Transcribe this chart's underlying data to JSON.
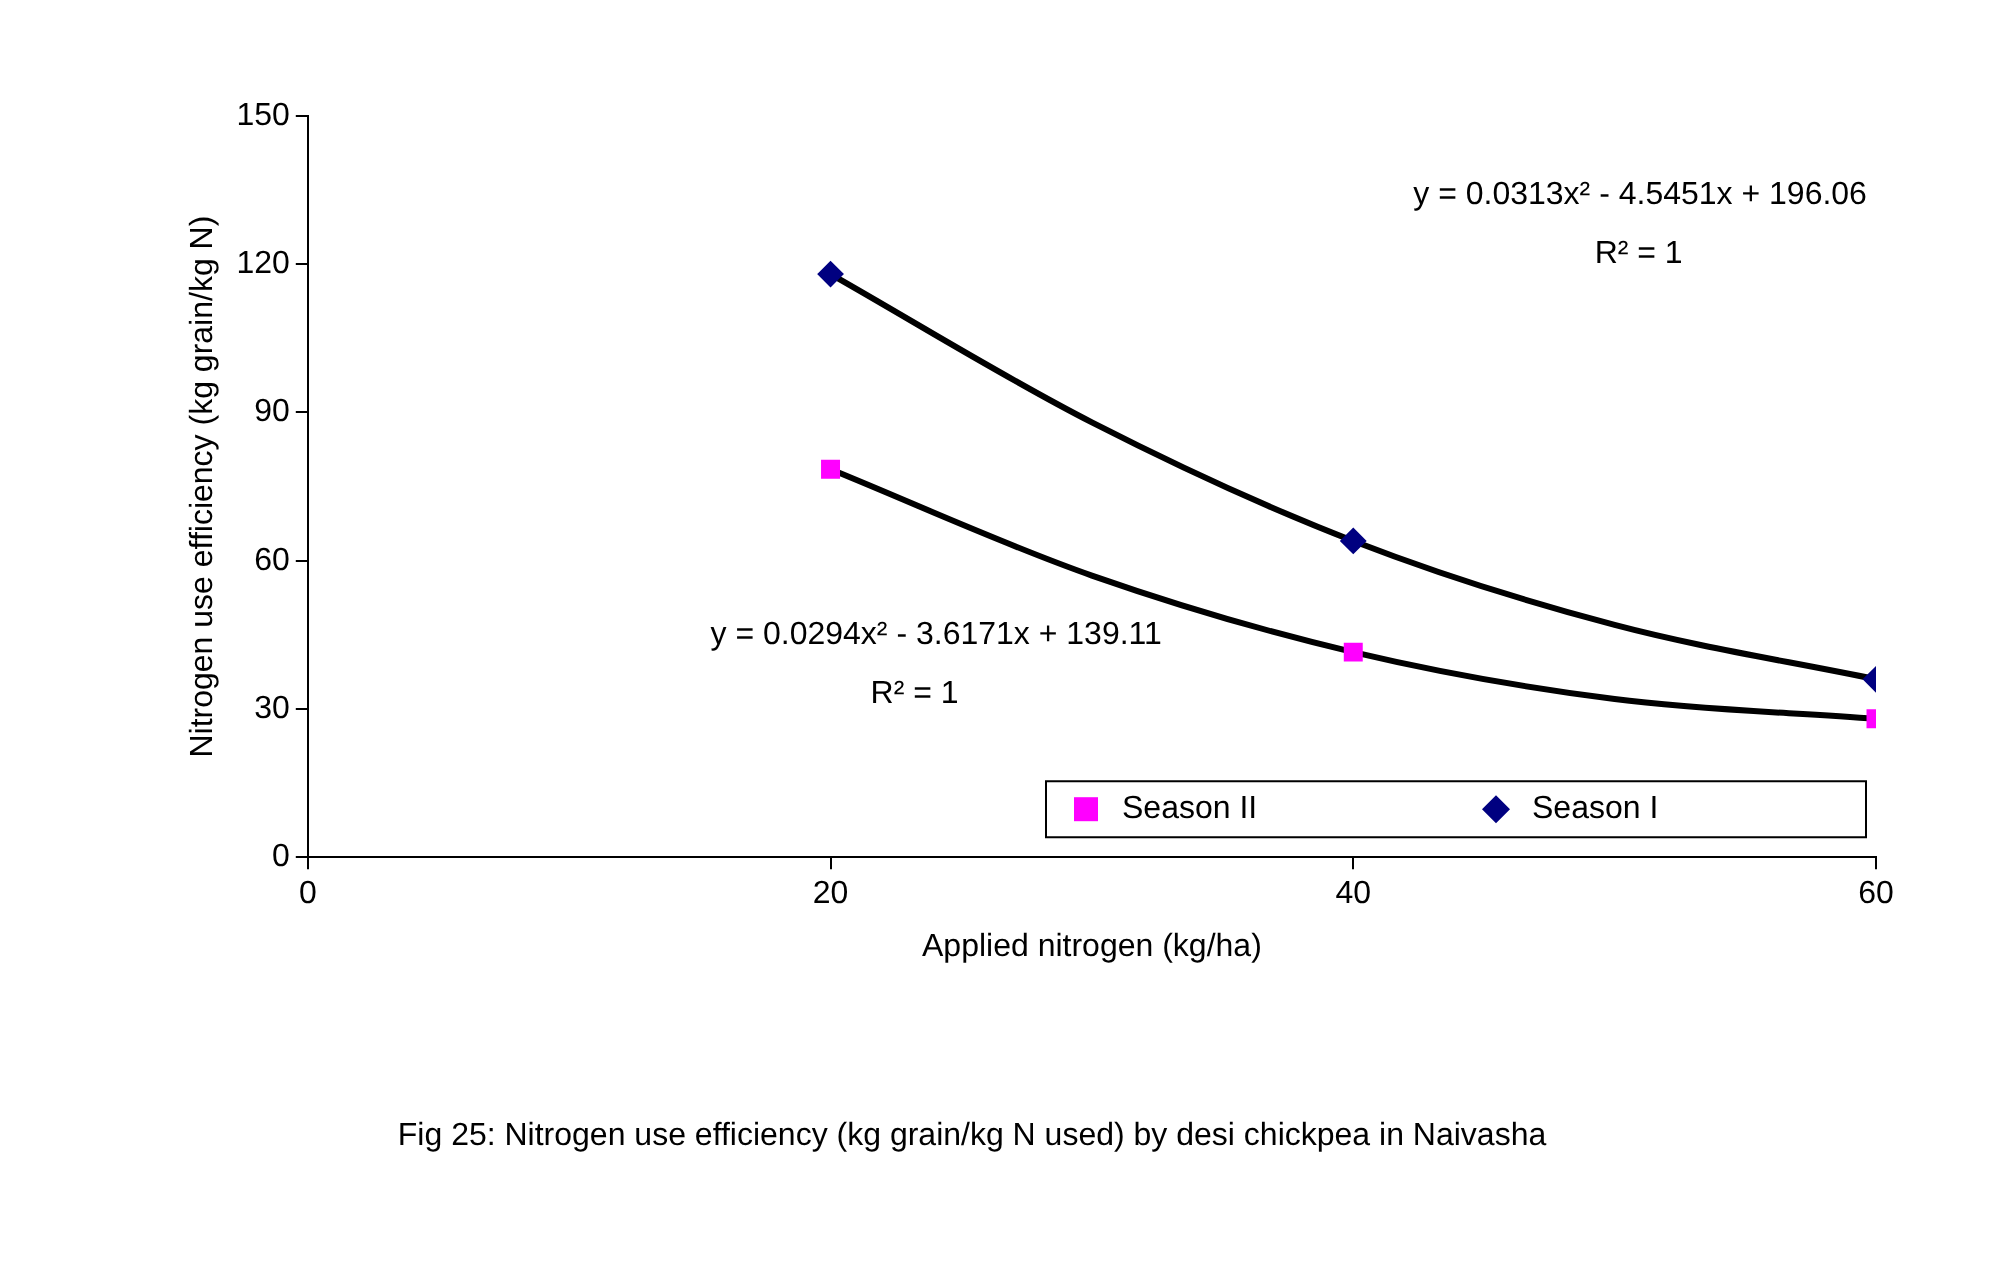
{
  "chart_data": {
    "type": "scatter",
    "xlabel": "Applied nitrogen (kg/ha)",
    "ylabel": "Nitrogen use efficiency (kg grain/kg N)",
    "x": [
      20,
      40,
      60
    ],
    "series": [
      {
        "name": "Season II",
        "color": "#ff00ff",
        "marker": "square",
        "values": [
          78.5,
          41.5,
          28
        ]
      },
      {
        "name": "Season I",
        "color": "#000080",
        "marker": "diamond",
        "values": [
          118,
          64,
          36
        ]
      },
      {
        "type": "line",
        "color": "#000000",
        "x": [
          20,
          30,
          40,
          50,
          60
        ],
        "values": [
          78.5,
          57,
          41.5,
          32,
          28
        ]
      },
      {
        "type": "line",
        "color": "#000000",
        "x": [
          20,
          30,
          40,
          50,
          60
        ],
        "values": [
          118,
          88,
          64,
          47,
          36
        ]
      }
    ],
    "xlim": [
      0,
      60
    ],
    "xticks": [
      0,
      20,
      40,
      60
    ],
    "ylim": [
      0,
      150
    ],
    "yticks": [
      0,
      30,
      60,
      90,
      120,
      150
    ],
    "grid": false,
    "legend": "bottom right",
    "line_style": "solid",
    "annotations": [
      "y = 0.0294x² - 3.6171x + 139.11",
      "R² = 1",
      "y = 0.0313x² - 4.5451x + 196.06",
      "R² = 1",
      "Fig 25: Nitrogen use efficiency (kg grain/kg N used) by desi chickpea in Naivasha"
    ]
  }
}
